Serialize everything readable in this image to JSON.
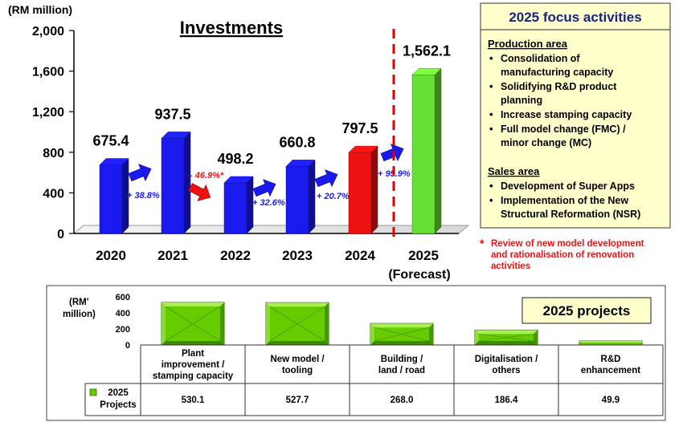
{
  "chart_data": [
    {
      "type": "bar",
      "title": "Investments",
      "unit_label": "(RM million)",
      "categories": [
        "2020",
        "2021",
        "2022",
        "2023",
        "2024",
        "2025"
      ],
      "forecast_note": "(Forecast)",
      "values": [
        675.4,
        937.5,
        498.2,
        660.8,
        797.5,
        1562.1
      ],
      "value_labels": [
        "675.4",
        "937.5",
        "498.2",
        "660.8",
        "797.5",
        "1,562.1"
      ],
      "bar_colors": [
        "#1a1aee",
        "#1a1aee",
        "#1a1aee",
        "#1a1aee",
        "#ee1111",
        "#66e033"
      ],
      "ylim": [
        0,
        2000
      ],
      "yticks": [
        0,
        400,
        800,
        1200,
        1600,
        2000
      ],
      "ytick_labels": [
        "0",
        "400",
        "800",
        "1,200",
        "1,600",
        "2,000"
      ],
      "growth": [
        {
          "after": "2020",
          "label": "+ 38.8%",
          "direction": "up",
          "color": "#1a1aee"
        },
        {
          "after": "2021",
          "label": "- 46.9%*",
          "direction": "down",
          "color": "#ee1111"
        },
        {
          "after": "2022",
          "label": "+ 32.6%",
          "direction": "up",
          "color": "#1a1aee"
        },
        {
          "after": "2023",
          "label": "+ 20.7%",
          "direction": "up",
          "color": "#1a1aee"
        },
        {
          "after": "2024",
          "label": "+ 95.9%",
          "direction": "up",
          "color": "#1a1aee"
        }
      ]
    },
    {
      "type": "bar",
      "title": "2025 projects",
      "unit_label": [
        "(RM'",
        "million)"
      ],
      "legend": "2025 Projects",
      "legend_lines": [
        "2025",
        "Projects"
      ],
      "categories": [
        [
          "Plant",
          "improvement /",
          "stamping capacity"
        ],
        [
          "New model /",
          "tooling"
        ],
        [
          "Building /",
          "land / road"
        ],
        [
          "Digitalisation /",
          "others"
        ],
        [
          "R&D",
          "enhancement"
        ]
      ],
      "values": [
        530.1,
        527.7,
        268.0,
        186.4,
        49.9
      ],
      "value_labels": [
        "530.1",
        "527.7",
        "268.0",
        "186.4",
        "49.9"
      ],
      "ylim": [
        0,
        600
      ],
      "yticks": [
        0,
        200,
        400,
        600
      ],
      "ytick_labels": [
        "0",
        "200",
        "400",
        "600"
      ]
    }
  ],
  "focus": {
    "title": "2025 focus activities",
    "production_heading": "Production area",
    "production_items": [
      [
        "Consolidation of",
        "manufacturing capacity"
      ],
      [
        "Solidifying R&D product",
        "planning"
      ],
      [
        "Increase stamping capacity"
      ],
      [
        "Full model change (FMC) /",
        "minor change (MC)"
      ]
    ],
    "sales_heading": "Sales area",
    "sales_items": [
      [
        "Development of Super Apps"
      ],
      [
        "Implementation of the New",
        "Structural Reformation (NSR)"
      ]
    ],
    "bullet": "•"
  },
  "footnote": {
    "marker": "*",
    "lines": [
      "Review of new model development",
      "and rationalisation of renovation",
      "activities"
    ]
  },
  "colors": {
    "box_fill": "#ffffcc",
    "title_blue": "#1a237e",
    "footnote_red": "#ee1111",
    "green_bar": "#66cc00"
  }
}
